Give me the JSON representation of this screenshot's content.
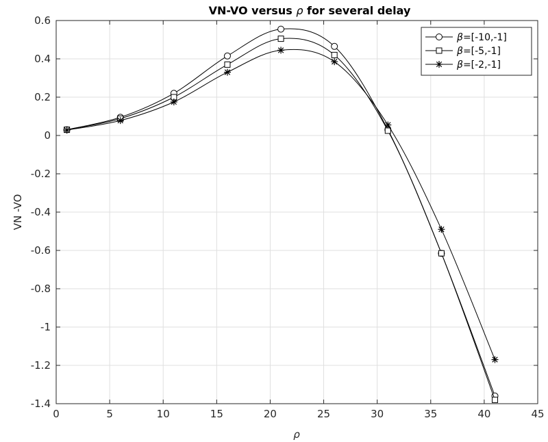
{
  "chart_data": {
    "type": "line",
    "title_prefix": "VN-VO versus ",
    "title_symbol": "ρ",
    "title_suffix": " for several delay",
    "xlabel": "ρ",
    "ylabel": "VN -VO",
    "xlim": [
      0,
      45
    ],
    "ylim": [
      -1.4,
      0.6
    ],
    "xticks": [
      0,
      5,
      10,
      15,
      20,
      25,
      30,
      35,
      40,
      45
    ],
    "yticks": [
      -1.4,
      -1.2,
      -1,
      -0.8,
      -0.6,
      -0.4,
      -0.2,
      0,
      0.2,
      0.4,
      0.6
    ],
    "grid": true,
    "legend_position": "top-right",
    "color": "#000000",
    "x": [
      1,
      6,
      11,
      16,
      21,
      26,
      31,
      36,
      41
    ],
    "series": [
      {
        "name_symbol": "β",
        "name_text": "=[-10,-1]",
        "marker": "circle",
        "values": [
          0.03,
          0.095,
          0.22,
          0.415,
          0.555,
          0.465,
          0.03,
          -0.615,
          -1.36
        ]
      },
      {
        "name_symbol": "β",
        "name_text": "=[-5,-1]",
        "marker": "square",
        "values": [
          0.03,
          0.088,
          0.2,
          0.37,
          0.505,
          0.42,
          0.025,
          -0.615,
          -1.38
        ]
      },
      {
        "name_symbol": "β",
        "name_text": "=[-2,-1]",
        "marker": "asterisk",
        "values": [
          0.028,
          0.078,
          0.175,
          0.33,
          0.445,
          0.385,
          0.055,
          -0.49,
          -1.17
        ]
      }
    ]
  }
}
